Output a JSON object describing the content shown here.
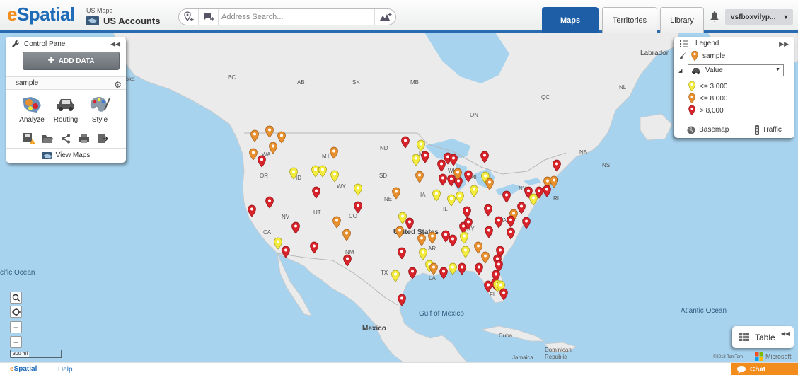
{
  "header": {
    "logo_e": "e",
    "logo_rest": "Spatial",
    "breadcrumb_small": "US Maps",
    "breadcrumb_title": "US Accounts",
    "search_placeholder": "Address Search...",
    "tabs": [
      {
        "label": "Maps",
        "active": true
      },
      {
        "label": "Territories",
        "active": false
      },
      {
        "label": "Library",
        "active": false
      }
    ],
    "user": "vsfboxvilyp..."
  },
  "control_panel": {
    "title": "Control Panel",
    "add_data_label": "ADD DATA",
    "layer_name": "sample",
    "tools": [
      {
        "label": "Analyze",
        "icon": "analyze-icon"
      },
      {
        "label": "Routing",
        "icon": "car-icon"
      },
      {
        "label": "Style",
        "icon": "palette-icon"
      }
    ],
    "toolbar_icons": [
      "save-warning-icon",
      "folder-open-icon",
      "share-icon",
      "print-icon",
      "export-icon"
    ],
    "view_maps_label": "View Maps"
  },
  "legend": {
    "title": "Legend",
    "layer_name": "sample",
    "selected_field": "Value",
    "items": [
      {
        "label": "<= 3,000",
        "color": "#f4ec3c"
      },
      {
        "label": "<= 8,000",
        "color": "#e8902e"
      },
      {
        "label": "> 8,000",
        "color": "#d8232a"
      }
    ],
    "basemap_label": "Basemap",
    "traffic_label": "Traffic"
  },
  "map": {
    "scale_label": "300 mi",
    "table_label": "Table",
    "copyright": "©2018 TomTom",
    "ms_text": "Microsoft",
    "place_labels": [
      {
        "text": "Labrador",
        "kind": "big"
      },
      {
        "text": "AB",
        "kind": "small"
      },
      {
        "text": "SK",
        "kind": "small"
      },
      {
        "text": "MB",
        "kind": "small"
      },
      {
        "text": "BC",
        "kind": "small"
      },
      {
        "text": "ON",
        "kind": "small"
      },
      {
        "text": "QC",
        "kind": "small"
      },
      {
        "text": "NL",
        "kind": "small"
      },
      {
        "text": "NB",
        "kind": "small"
      },
      {
        "text": "NS",
        "kind": "small"
      },
      {
        "text": "WA",
        "kind": "small"
      },
      {
        "text": "MT",
        "kind": "small"
      },
      {
        "text": "ND",
        "kind": "small"
      },
      {
        "text": "MN",
        "kind": "small"
      },
      {
        "text": "OR",
        "kind": "small"
      },
      {
        "text": "ID",
        "kind": "small"
      },
      {
        "text": "WY",
        "kind": "small"
      },
      {
        "text": "SD",
        "kind": "small"
      },
      {
        "text": "WI",
        "kind": "small"
      },
      {
        "text": "MI",
        "kind": "small"
      },
      {
        "text": "NY",
        "kind": "small"
      },
      {
        "text": "NH",
        "kind": "small"
      },
      {
        "text": "RI",
        "kind": "small"
      },
      {
        "text": "NE",
        "kind": "small"
      },
      {
        "text": "IA",
        "kind": "small"
      },
      {
        "text": "IL",
        "kind": "small"
      },
      {
        "text": "PA",
        "kind": "small"
      },
      {
        "text": "NV",
        "kind": "small"
      },
      {
        "text": "UT",
        "kind": "small"
      },
      {
        "text": "CO",
        "kind": "small"
      },
      {
        "text": "KY",
        "kind": "small"
      },
      {
        "text": "VA",
        "kind": "small"
      },
      {
        "text": "CA",
        "kind": "small"
      },
      {
        "text": "United States",
        "kind": "country"
      },
      {
        "text": "AR",
        "kind": "small"
      },
      {
        "text": "NM",
        "kind": "small"
      },
      {
        "text": "TX",
        "kind": "small"
      },
      {
        "text": "LA",
        "kind": "small"
      },
      {
        "text": "FL",
        "kind": "small"
      },
      {
        "text": "Gulf of Mexico",
        "kind": "water"
      },
      {
        "text": "Mexico",
        "kind": "country"
      },
      {
        "text": "Cuba",
        "kind": "small"
      },
      {
        "text": "Dominican",
        "kind": "small"
      },
      {
        "text": "Republic",
        "kind": "small"
      },
      {
        "text": "Jamaica",
        "kind": "small"
      },
      {
        "text": "Atlantic Ocean",
        "kind": "water"
      },
      {
        "text": "cific Ocean",
        "kind": "water"
      },
      {
        "text": "ska",
        "kind": "small"
      }
    ]
  },
  "footer": {
    "logo_e": "e",
    "logo_rest": "Spatial",
    "help_label": "Help",
    "chat_label": "Chat"
  },
  "colors": {
    "accent": "#1e5ea6",
    "water": "#a8d3ee",
    "land": "#ebebeb",
    "brand_orange": "#f28c1d",
    "pin_low": "#f4ec3c",
    "pin_mid": "#e8902e",
    "pin_high": "#d8232a"
  }
}
